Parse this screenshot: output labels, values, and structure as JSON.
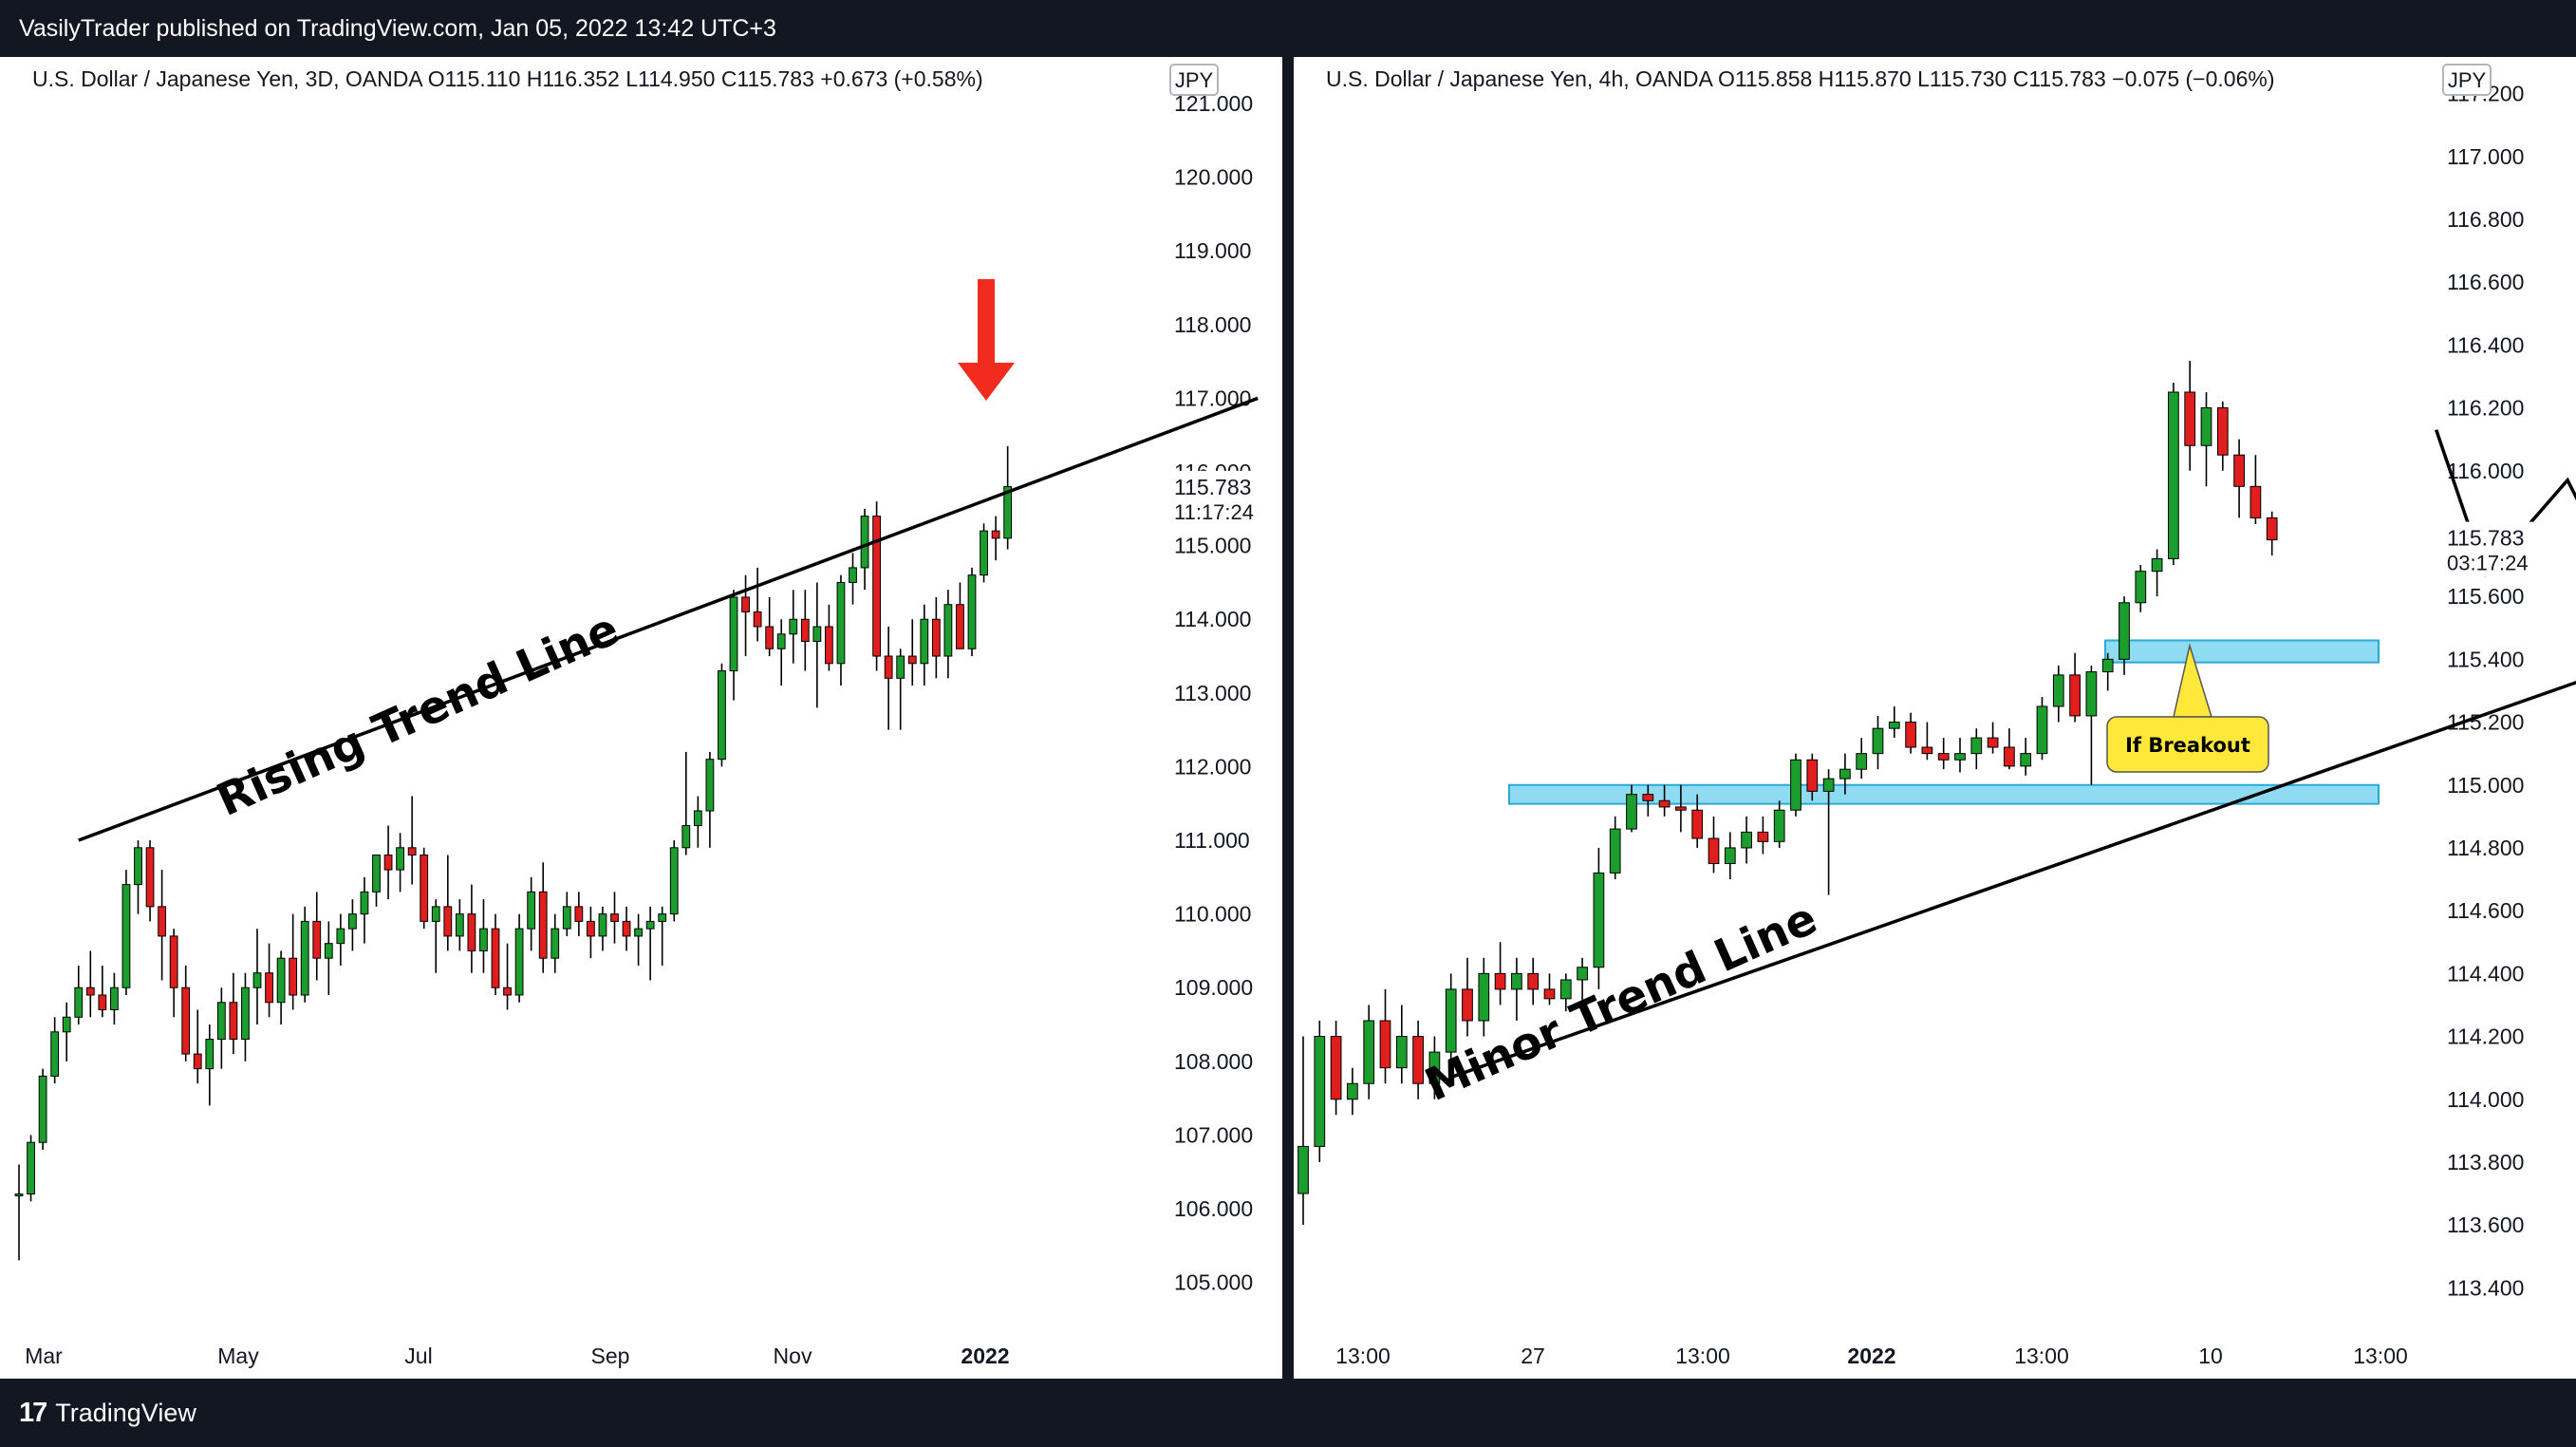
{
  "header": {
    "published": "VasilyTrader published on TradingView.com, Jan 05, 2022 13:42 UTC+3"
  },
  "footer": {
    "brand": "TradingView",
    "logo_glyph": "17"
  },
  "colors": {
    "up": "#1b9e2e",
    "down": "#e01e1e",
    "zone": "#8fdcf2",
    "zone_border": "#29a9d6",
    "callout": "#ffe83a",
    "arrow": "#f22b1f"
  },
  "chart_data": [
    {
      "type": "candlestick",
      "legend": "U.S. Dollar / Japanese Yen, 3D, OANDA  O115.110  H116.352  L114.950  C115.783  +0.673 (+0.58%)",
      "currency": "JPY",
      "last_price": "115.783",
      "countdown": "11:17:24",
      "yticks": [
        "105.000",
        "106.000",
        "107.000",
        "108.000",
        "109.000",
        "110.000",
        "111.000",
        "112.000",
        "113.000",
        "114.000",
        "115.000",
        "116.000",
        "117.000",
        "118.000",
        "119.000",
        "120.000",
        "121.000"
      ],
      "xticks": [
        "Mar",
        "May",
        "Jul",
        "Sep",
        "Nov",
        "2022"
      ],
      "ylim": [
        104.0,
        121.4
      ],
      "annotation": "Rising Trend Line",
      "trendline": [
        [
          5,
          111.0
        ],
        [
          104,
          117.0
        ]
      ],
      "candles": [
        [
          106.2,
          106.6,
          105.3,
          106.2
        ],
        [
          106.2,
          107.0,
          106.1,
          106.9
        ],
        [
          106.9,
          107.9,
          106.8,
          107.8
        ],
        [
          107.8,
          108.6,
          107.7,
          108.4
        ],
        [
          108.4,
          108.8,
          108.0,
          108.6
        ],
        [
          108.6,
          109.3,
          108.5,
          109.0
        ],
        [
          109.0,
          109.5,
          108.6,
          108.9
        ],
        [
          108.9,
          109.3,
          108.6,
          108.7
        ],
        [
          108.7,
          109.2,
          108.5,
          109.0
        ],
        [
          109.0,
          110.6,
          108.9,
          110.4
        ],
        [
          110.4,
          111.0,
          110.0,
          110.9
        ],
        [
          110.9,
          111.0,
          109.9,
          110.1
        ],
        [
          110.1,
          110.6,
          109.1,
          109.7
        ],
        [
          109.7,
          109.8,
          108.6,
          109.0
        ],
        [
          109.0,
          109.3,
          108.0,
          108.1
        ],
        [
          108.1,
          108.7,
          107.7,
          107.9
        ],
        [
          107.9,
          108.5,
          107.4,
          108.3
        ],
        [
          108.3,
          109.0,
          107.9,
          108.8
        ],
        [
          108.8,
          109.2,
          108.1,
          108.3
        ],
        [
          108.3,
          109.2,
          108.0,
          109.0
        ],
        [
          109.0,
          109.8,
          108.5,
          109.2
        ],
        [
          109.2,
          109.6,
          108.6,
          108.8
        ],
        [
          108.8,
          109.5,
          108.5,
          109.4
        ],
        [
          109.4,
          110.0,
          108.7,
          108.9
        ],
        [
          108.9,
          110.1,
          108.8,
          109.9
        ],
        [
          109.9,
          110.3,
          109.1,
          109.4
        ],
        [
          109.4,
          109.9,
          108.9,
          109.6
        ],
        [
          109.6,
          110.0,
          109.3,
          109.8
        ],
        [
          109.8,
          110.2,
          109.5,
          110.0
        ],
        [
          110.0,
          110.5,
          109.6,
          110.3
        ],
        [
          110.3,
          110.8,
          110.1,
          110.8
        ],
        [
          110.8,
          111.2,
          110.2,
          110.6
        ],
        [
          110.6,
          111.1,
          110.3,
          110.9
        ],
        [
          110.9,
          111.6,
          110.4,
          110.8
        ],
        [
          110.8,
          110.9,
          109.8,
          109.9
        ],
        [
          109.9,
          110.2,
          109.2,
          110.1
        ],
        [
          110.1,
          110.8,
          109.5,
          109.7
        ],
        [
          109.7,
          110.2,
          109.5,
          110.0
        ],
        [
          110.0,
          110.4,
          109.2,
          109.5
        ],
        [
          109.5,
          110.2,
          109.2,
          109.8
        ],
        [
          109.8,
          110.0,
          108.9,
          109.0
        ],
        [
          109.0,
          109.6,
          108.7,
          108.9
        ],
        [
          108.9,
          110.0,
          108.8,
          109.8
        ],
        [
          109.8,
          110.5,
          109.5,
          110.3
        ],
        [
          110.3,
          110.7,
          109.2,
          109.4
        ],
        [
          109.4,
          110.0,
          109.2,
          109.8
        ],
        [
          109.8,
          110.3,
          109.7,
          110.1
        ],
        [
          110.1,
          110.3,
          109.7,
          109.9
        ],
        [
          109.9,
          110.1,
          109.4,
          109.7
        ],
        [
          109.7,
          110.1,
          109.5,
          110.0
        ],
        [
          110.0,
          110.3,
          109.6,
          109.9
        ],
        [
          109.9,
          110.1,
          109.5,
          109.7
        ],
        [
          109.7,
          110.0,
          109.3,
          109.8
        ],
        [
          109.8,
          110.1,
          109.1,
          109.9
        ],
        [
          109.9,
          110.1,
          109.3,
          110.0
        ],
        [
          110.0,
          111.0,
          109.9,
          110.9
        ],
        [
          110.9,
          112.2,
          110.8,
          111.2
        ],
        [
          111.2,
          111.6,
          110.9,
          111.4
        ],
        [
          111.4,
          112.2,
          110.9,
          112.1
        ],
        [
          112.1,
          113.4,
          112.0,
          113.3
        ],
        [
          113.3,
          114.4,
          112.9,
          114.3
        ],
        [
          114.3,
          114.6,
          113.5,
          114.1
        ],
        [
          114.1,
          114.7,
          113.7,
          113.9
        ],
        [
          113.9,
          114.3,
          113.5,
          113.6
        ],
        [
          113.6,
          114.0,
          113.1,
          113.8
        ],
        [
          113.8,
          114.4,
          113.4,
          114.0
        ],
        [
          114.0,
          114.4,
          113.3,
          113.7
        ],
        [
          113.7,
          114.5,
          112.8,
          113.9
        ],
        [
          113.9,
          114.2,
          113.3,
          113.4
        ],
        [
          113.4,
          114.6,
          113.1,
          114.5
        ],
        [
          114.5,
          114.9,
          114.2,
          114.7
        ],
        [
          114.7,
          115.5,
          114.4,
          115.4
        ],
        [
          115.4,
          115.6,
          113.3,
          113.5
        ],
        [
          113.5,
          113.9,
          112.5,
          113.2
        ],
        [
          113.2,
          113.6,
          112.5,
          113.5
        ],
        [
          113.5,
          114.0,
          113.1,
          113.4
        ],
        [
          113.4,
          114.2,
          113.1,
          114.0
        ],
        [
          114.0,
          114.3,
          113.2,
          113.5
        ],
        [
          113.5,
          114.4,
          113.2,
          114.2
        ],
        [
          114.2,
          114.5,
          113.6,
          113.6
        ],
        [
          113.6,
          114.7,
          113.5,
          114.6
        ],
        [
          114.6,
          115.3,
          114.5,
          115.2
        ],
        [
          115.2,
          115.4,
          114.8,
          115.1
        ],
        [
          115.1,
          116.35,
          114.95,
          115.8
        ]
      ]
    },
    {
      "type": "candlestick",
      "legend": "U.S. Dollar / Japanese Yen, 4h, OANDA  O115.858  H115.870  L115.730  C115.783  −0.075 (−0.06%)",
      "currency": "JPY",
      "last_price": "115.783",
      "countdown": "03:17:24",
      "yticks": [
        "113.400",
        "113.600",
        "113.800",
        "114.000",
        "114.200",
        "114.400",
        "114.600",
        "114.800",
        "115.000",
        "115.200",
        "115.400",
        "115.600",
        "115.800",
        "116.000",
        "116.200",
        "116.400",
        "116.600",
        "116.800",
        "117.000",
        "117.200"
      ],
      "xticks": [
        "13:00",
        "27",
        "13:00",
        "2022",
        "13:00",
        "10",
        "13:00"
      ],
      "ylim": [
        113.2,
        117.25
      ],
      "annotation": "Minor Trend Line",
      "callout": "If Breakout",
      "zones": [
        [
          115.39,
          115.46
        ],
        [
          114.94,
          115.0
        ]
      ],
      "trendline": [
        [
          9,
          114.07
        ],
        [
          99,
          115.72
        ]
      ],
      "projection_solid": [
        [
          69,
          116.13
        ],
        [
          72,
          115.67
        ],
        [
          77,
          115.97
        ],
        [
          82,
          115.45
        ],
        [
          86,
          115.65
        ]
      ],
      "projection_dashed": [
        [
          86,
          115.65
        ],
        [
          89,
          115.35
        ],
        [
          92,
          114.98
        ],
        [
          94,
          115.08
        ]
      ],
      "candles": [
        [
          113.7,
          114.2,
          113.6,
          113.85
        ],
        [
          113.85,
          114.25,
          113.8,
          114.2
        ],
        [
          114.2,
          114.25,
          113.95,
          114.0
        ],
        [
          114.0,
          114.1,
          113.95,
          114.05
        ],
        [
          114.05,
          114.3,
          114.0,
          114.25
        ],
        [
          114.25,
          114.35,
          114.05,
          114.1
        ],
        [
          114.1,
          114.3,
          114.05,
          114.2
        ],
        [
          114.2,
          114.25,
          114.0,
          114.05
        ],
        [
          114.05,
          114.2,
          114.0,
          114.15
        ],
        [
          114.15,
          114.4,
          114.1,
          114.35
        ],
        [
          114.35,
          114.45,
          114.2,
          114.25
        ],
        [
          114.25,
          114.45,
          114.2,
          114.4
        ],
        [
          114.4,
          114.5,
          114.3,
          114.35
        ],
        [
          114.35,
          114.45,
          114.25,
          114.4
        ],
        [
          114.4,
          114.45,
          114.3,
          114.35
        ],
        [
          114.35,
          114.4,
          114.3,
          114.32
        ],
        [
          114.32,
          114.4,
          114.28,
          114.38
        ],
        [
          114.38,
          114.45,
          114.3,
          114.42
        ],
        [
          114.42,
          114.8,
          114.35,
          114.72
        ],
        [
          114.72,
          114.9,
          114.7,
          114.86
        ],
        [
          114.86,
          115.0,
          114.85,
          114.97
        ],
        [
          114.97,
          115.0,
          114.9,
          114.95
        ],
        [
          114.95,
          115.0,
          114.9,
          114.93
        ],
        [
          114.93,
          115.0,
          114.85,
          114.92
        ],
        [
          114.92,
          114.97,
          114.8,
          114.83
        ],
        [
          114.83,
          114.9,
          114.72,
          114.75
        ],
        [
          114.75,
          114.85,
          114.7,
          114.8
        ],
        [
          114.8,
          114.9,
          114.75,
          114.85
        ],
        [
          114.85,
          114.9,
          114.78,
          114.82
        ],
        [
          114.82,
          114.95,
          114.8,
          114.92
        ],
        [
          114.92,
          115.1,
          114.9,
          115.08
        ],
        [
          115.08,
          115.1,
          114.95,
          114.98
        ],
        [
          114.98,
          115.05,
          114.65,
          115.02
        ],
        [
          115.02,
          115.1,
          114.97,
          115.05
        ],
        [
          115.05,
          115.15,
          115.02,
          115.1
        ],
        [
          115.1,
          115.22,
          115.05,
          115.18
        ],
        [
          115.18,
          115.25,
          115.15,
          115.2
        ],
        [
          115.2,
          115.23,
          115.1,
          115.12
        ],
        [
          115.12,
          115.2,
          115.08,
          115.1
        ],
        [
          115.1,
          115.15,
          115.05,
          115.08
        ],
        [
          115.08,
          115.15,
          115.04,
          115.1
        ],
        [
          115.1,
          115.18,
          115.05,
          115.15
        ],
        [
          115.15,
          115.2,
          115.1,
          115.12
        ],
        [
          115.12,
          115.18,
          115.05,
          115.06
        ],
        [
          115.06,
          115.15,
          115.03,
          115.1
        ],
        [
          115.1,
          115.28,
          115.08,
          115.25
        ],
        [
          115.25,
          115.38,
          115.2,
          115.35
        ],
        [
          115.35,
          115.42,
          115.2,
          115.22
        ],
        [
          115.22,
          115.38,
          115.0,
          115.36
        ],
        [
          115.36,
          115.42,
          115.3,
          115.4
        ],
        [
          115.4,
          115.6,
          115.35,
          115.58
        ],
        [
          115.58,
          115.7,
          115.55,
          115.68
        ],
        [
          115.68,
          115.75,
          115.6,
          115.72
        ],
        [
          115.72,
          116.28,
          115.7,
          116.25
        ],
        [
          116.25,
          116.35,
          116.0,
          116.08
        ],
        [
          116.08,
          116.25,
          115.95,
          116.2
        ],
        [
          116.2,
          116.22,
          116.0,
          116.05
        ],
        [
          116.05,
          116.1,
          115.85,
          115.95
        ],
        [
          115.95,
          116.05,
          115.83,
          115.85
        ],
        [
          115.85,
          115.87,
          115.73,
          115.78
        ]
      ]
    }
  ]
}
